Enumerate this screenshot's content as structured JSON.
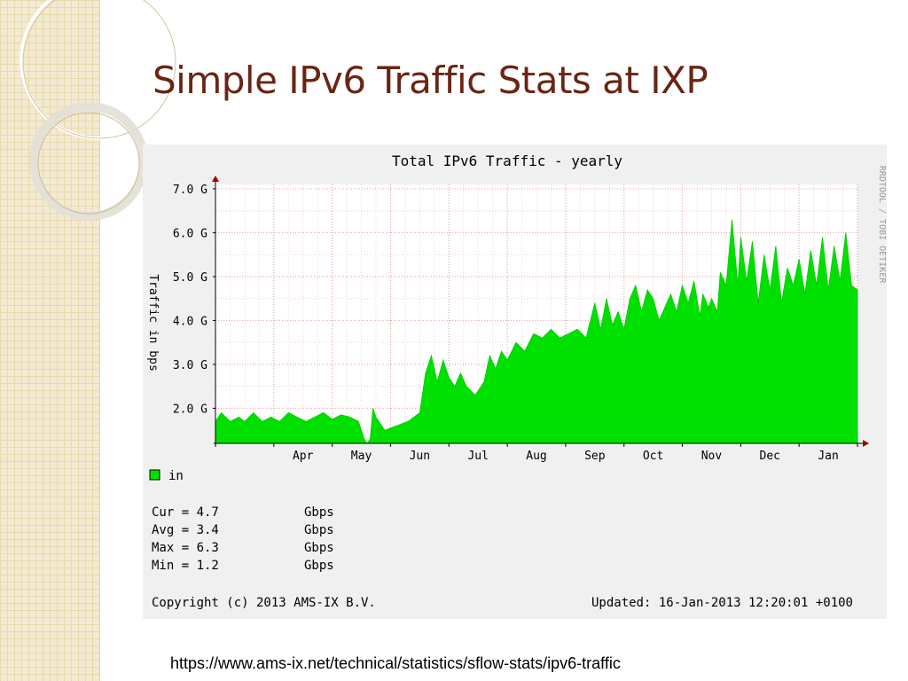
{
  "slide": {
    "title": "Simple IPv6 Traffic Stats at IXP",
    "source_url": "https://www.ams-ix.net/technical/statistics/sflow-stats/ipv6-traffic"
  },
  "chart_data": {
    "type": "area",
    "title": "Total IPv6 Traffic - yearly",
    "ylabel": "Traffic in bps",
    "side_label": "RRDTOOL / TOBI OETIKER",
    "y_unit": "Gbps",
    "ylim": [
      1.2,
      7.1
    ],
    "yticks": [
      2.0,
      3.0,
      4.0,
      5.0,
      6.0,
      7.0
    ],
    "ytick_labels": [
      "2.0 G",
      "3.0 G",
      "4.0 G",
      "5.0 G",
      "6.0 G",
      "7.0 G"
    ],
    "x_range_months": [
      2.0,
      13.0
    ],
    "xtick_positions": [
      3.5,
      4.5,
      5.5,
      6.5,
      7.5,
      8.5,
      9.5,
      10.5,
      11.5,
      12.5
    ],
    "xtick_labels": [
      "Apr",
      "May",
      "Jun",
      "Jul",
      "Aug",
      "Sep",
      "Oct",
      "Nov",
      "Dec",
      "Jan"
    ],
    "grid": true,
    "fill_color": "#00e000",
    "series": [
      {
        "name": "in",
        "color": "#00cc00",
        "x": [
          2.0,
          2.1,
          2.25,
          2.4,
          2.5,
          2.65,
          2.8,
          2.95,
          3.1,
          3.25,
          3.4,
          3.55,
          3.7,
          3.85,
          4.0,
          4.15,
          4.3,
          4.45,
          4.55,
          4.6,
          4.65,
          4.7,
          4.75,
          4.9,
          5.1,
          5.3,
          5.5,
          5.6,
          5.7,
          5.8,
          5.9,
          6.0,
          6.1,
          6.2,
          6.3,
          6.45,
          6.6,
          6.7,
          6.8,
          6.9,
          7.0,
          7.15,
          7.3,
          7.45,
          7.6,
          7.75,
          7.9,
          8.05,
          8.2,
          8.35,
          8.5,
          8.6,
          8.7,
          8.8,
          8.9,
          9.0,
          9.1,
          9.2,
          9.3,
          9.4,
          9.5,
          9.6,
          9.7,
          9.8,
          9.9,
          10.0,
          10.1,
          10.2,
          10.3,
          10.35,
          10.45,
          10.5,
          10.6,
          10.65,
          10.75,
          10.85,
          10.95,
          11.0,
          11.1,
          11.2,
          11.3,
          11.4,
          11.5,
          11.6,
          11.7,
          11.8,
          11.9,
          12.0,
          12.1,
          12.2,
          12.3,
          12.4,
          12.5,
          12.6,
          12.7,
          12.8,
          12.9,
          13.0
        ],
        "values": [
          1.7,
          1.9,
          1.7,
          1.8,
          1.7,
          1.9,
          1.7,
          1.8,
          1.7,
          1.9,
          1.8,
          1.7,
          1.8,
          1.9,
          1.75,
          1.85,
          1.8,
          1.7,
          1.3,
          1.2,
          1.3,
          2.0,
          1.8,
          1.5,
          1.6,
          1.7,
          1.9,
          2.8,
          3.2,
          2.6,
          3.1,
          2.7,
          2.5,
          2.8,
          2.5,
          2.3,
          2.6,
          3.2,
          2.9,
          3.3,
          3.1,
          3.5,
          3.3,
          3.7,
          3.6,
          3.8,
          3.6,
          3.7,
          3.8,
          3.6,
          4.4,
          3.8,
          4.5,
          3.9,
          4.2,
          3.8,
          4.5,
          4.8,
          4.2,
          4.7,
          4.5,
          4.0,
          4.3,
          4.6,
          4.2,
          4.8,
          4.4,
          4.9,
          4.1,
          4.6,
          4.3,
          4.5,
          4.2,
          5.1,
          4.8,
          6.3,
          4.8,
          5.9,
          4.9,
          5.8,
          4.4,
          5.5,
          4.7,
          5.7,
          4.4,
          5.2,
          4.8,
          5.4,
          4.6,
          5.6,
          4.8,
          5.9,
          4.7,
          5.7,
          4.9,
          6.0,
          4.8,
          4.7
        ]
      }
    ],
    "stats": [
      {
        "label": "Cur = 4.7",
        "unit": "Gbps"
      },
      {
        "label": "Avg = 3.4",
        "unit": "Gbps"
      },
      {
        "label": "Max = 6.3",
        "unit": "Gbps"
      },
      {
        "label": "Min = 1.2",
        "unit": "Gbps"
      }
    ],
    "copyright": "Copyright (c) 2013 AMS-IX B.V.",
    "updated": "Updated: 16-Jan-2013 12:20:01 +0100"
  }
}
